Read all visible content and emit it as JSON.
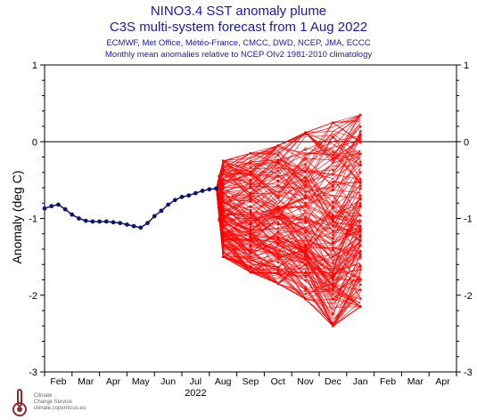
{
  "header": {
    "title": "NINO3.4 SST anomaly plume",
    "subtitle": "C3S multi-system forecast from 1 Aug 2022",
    "systems": "ECMWF, Met Office, Météo-France, CMCC, DWD, NCEP, JMA, ECCC",
    "note": "Monthly mean anomalies relative to NCEP OIv2 1981-2010 climatology"
  },
  "logo": {
    "line1": "Climate",
    "line2": "Change Service",
    "line3": "climate.copernicus.eu"
  },
  "chart_data": {
    "type": "line",
    "ylabel": "Anomaly (deg C)",
    "xlabel": "2022",
    "ylim": [
      -3,
      1
    ],
    "yticks": [
      -3,
      -2,
      -1,
      0,
      1
    ],
    "months": [
      "Feb",
      "Mar",
      "Apr",
      "May",
      "Jun",
      "Jul",
      "Aug",
      "Sep",
      "Oct",
      "Nov",
      "Dec",
      "Jan",
      "Feb",
      "Mar",
      "Apr"
    ],
    "xlim": [
      0.5,
      15.5
    ],
    "reference_line": 0,
    "colors": {
      "observed": "#0a1670",
      "forecast": "#ff0000",
      "axis": "#000000"
    },
    "observed": {
      "x": [
        0.5,
        0.75,
        1.0,
        1.25,
        1.5,
        1.75,
        2.0,
        2.25,
        2.5,
        2.75,
        3.0,
        3.25,
        3.5,
        3.75,
        4.0,
        4.25,
        4.5,
        4.75,
        5.0,
        5.25,
        5.5,
        5.75,
        6.0,
        6.25,
        6.5,
        6.75
      ],
      "y": [
        -0.87,
        -0.84,
        -0.82,
        -0.88,
        -0.95,
        -1.0,
        -1.03,
        -1.04,
        -1.04,
        -1.04,
        -1.05,
        -1.06,
        -1.08,
        -1.1,
        -1.12,
        -1.06,
        -0.97,
        -0.9,
        -0.82,
        -0.76,
        -0.72,
        -0.7,
        -0.67,
        -0.64,
        -0.62,
        -0.61
      ]
    },
    "forecast": {
      "start_x": 6.75,
      "start_y": -0.61,
      "months_x": [
        7,
        8,
        9,
        10,
        11,
        12
      ],
      "member_count": 180,
      "envelope_min": [
        -1.5,
        -1.7,
        -1.85,
        -2.05,
        -2.4,
        -2.15
      ],
      "envelope_max": [
        -0.25,
        -0.15,
        -0.05,
        0.12,
        0.25,
        0.35
      ],
      "median": [
        -0.65,
        -0.72,
        -0.8,
        -0.85,
        -0.85,
        -0.78
      ]
    }
  }
}
